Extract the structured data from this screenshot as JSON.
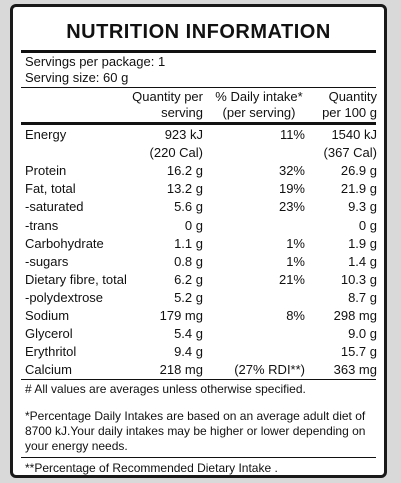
{
  "title": "NUTRITION INFORMATION",
  "servings_per_package": "Servings per package: 1",
  "serving_size": "Serving size: 60 g",
  "headers": {
    "per_serving_1": "Quantity per",
    "per_serving_2": "serving",
    "daily_1": "% Daily intake*",
    "daily_2": "(per serving)",
    "per100_1": "Quantity",
    "per100_2": "per 100 g"
  },
  "rows": [
    {
      "name": "Energy",
      "serving": "923 kJ",
      "daily": "11%",
      "per100": "1540 kJ"
    },
    {
      "name": "",
      "serving": "(220 Cal)",
      "daily": "",
      "per100": "(367 Cal)"
    },
    {
      "name": "Protein",
      "serving": "16.2 g",
      "daily": "32%",
      "per100": "26.9 g"
    },
    {
      "name": "Fat, total",
      "serving": "13.2 g",
      "daily": "19%",
      "per100": "21.9 g"
    },
    {
      "name": " -saturated",
      "serving": "5.6 g",
      "daily": "23%",
      "per100": "9.3 g"
    },
    {
      "name": " -trans",
      "serving": "0 g",
      "daily": "",
      "per100": "0 g"
    },
    {
      "name": "Carbohydrate",
      "serving": "1.1 g",
      "daily": "1%",
      "per100": "1.9 g"
    },
    {
      "name": " -sugars",
      "serving": "0.8 g",
      "daily": "1%",
      "per100": "1.4 g"
    },
    {
      "name": "Dietary fibre, total",
      "serving": "6.2 g",
      "daily": "21%",
      "per100": "10.3 g"
    },
    {
      "name": " -polydextrose",
      "serving": "5.2 g",
      "daily": "",
      "per100": "8.7 g"
    },
    {
      "name": "Sodium",
      "serving": "179 mg",
      "daily": "8%",
      "per100": "298 mg"
    },
    {
      "name": "Glycerol",
      "serving": "5.4 g",
      "daily": "",
      "per100": "9.0 g"
    },
    {
      "name": "Erythritol",
      "serving": "9.4 g",
      "daily": "",
      "per100": "15.7 g"
    },
    {
      "name": "Calcium",
      "serving": "218 mg",
      "daily": "(27% RDI**)",
      "per100": "363 mg"
    }
  ],
  "footnotes": {
    "averages": "# All values are averages unless otherwise specified.",
    "daily_intake": "*Percentage Daily Intakes are based on an average adult diet of 8700 kJ.Your daily intakes may be higher or lower depending on your energy needs.",
    "rdi": "**Percentage of Recommended Dietary Intake ."
  }
}
